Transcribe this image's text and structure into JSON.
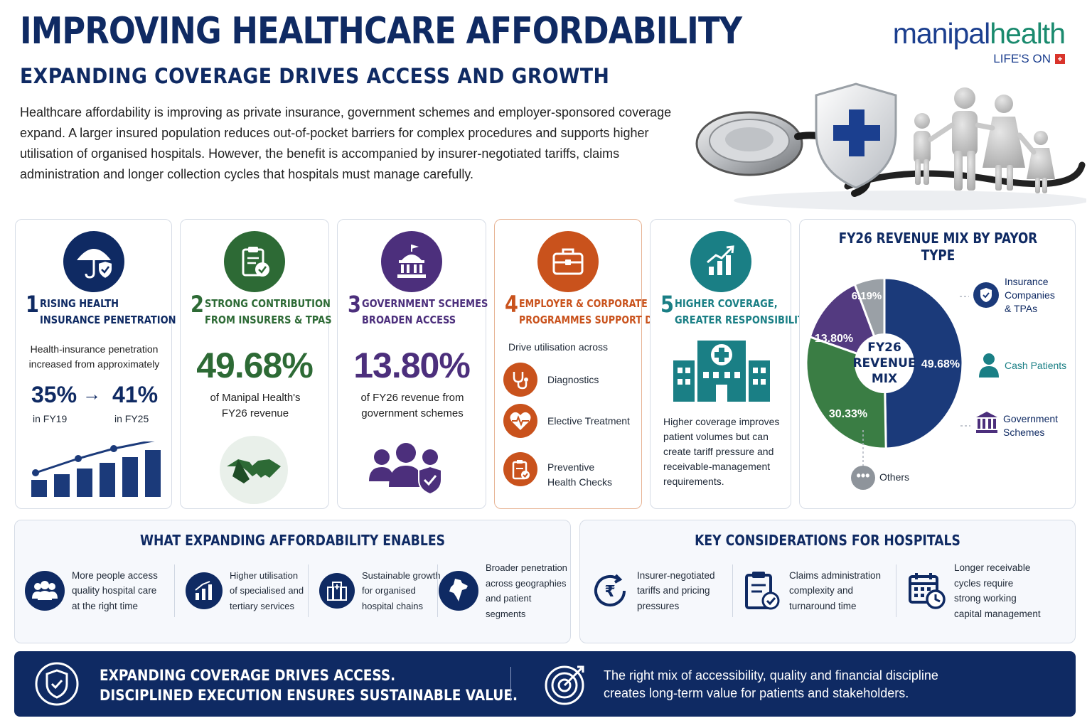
{
  "header": {
    "title": "IMPROVING HEALTHCARE AFFORDABILITY",
    "subtitle": "EXPANDING COVERAGE DRIVES ACCESS AND GROWTH",
    "intro": "Healthcare affordability is improving as private insurance, government schemes and employer-sponsored coverage expand. A larger insured population reduces out-of-pocket barriers for complex procedures and supports higher utilisation of organised hospitals. However, the benefit is accompanied by insurer-negotiated tariffs, claims administration and longer collection cycles that hospitals must manage carefully."
  },
  "brand": {
    "name_part1": "manipal",
    "name_part2": "health",
    "tagline": "LIFE'S ON",
    "tag_symbol": "+"
  },
  "colors": {
    "navy": "#0f2a63",
    "green": "#2d6a35",
    "purple": "#4c2f7c",
    "orange": "#c9521c",
    "teal": "#1a7f85",
    "grey": "#9aa0a6"
  },
  "cards": [
    {
      "num": "1",
      "line1": "RISING HEALTH",
      "line2": "INSURANCE PENETRATION",
      "text1": "Health-insurance penetration",
      "text2": "increased from approximately",
      "from_value": "35%",
      "arrow": "→",
      "to_value": "41%",
      "from_label": "in FY19",
      "to_label": "in FY25",
      "icon": "umbrella-shield-icon"
    },
    {
      "num": "2",
      "line1": "STRONG CONTRIBUTION",
      "line2": "FROM INSURERS & TPAS",
      "big": "49.68%",
      "text1": "of Manipal Health's",
      "text2": "FY26 revenue",
      "icon": "clipboard-check-icon"
    },
    {
      "num": "3",
      "line1": "GOVERNMENT SCHEMES",
      "line2": "BROADEN ACCESS",
      "big": "13.80%",
      "text1": "of FY26 revenue from",
      "text2": "government schemes",
      "icon": "government-building-icon"
    },
    {
      "num": "4",
      "line1": "EMPLOYER & CORPORATE",
      "line2": "PROGRAMMES SUPPORT DEMAND",
      "lead": "Drive utilisation across",
      "items": [
        "Diagnostics",
        "Elective Treatment",
        "Preventive",
        "Health Checks"
      ],
      "icon": "briefcase-icon"
    },
    {
      "num": "5",
      "line1": "HIGHER COVERAGE,",
      "line2": "GREATER RESPONSIBILITY",
      "lines": [
        "Higher coverage improves",
        "patient volumes but can",
        "create tariff pressure and",
        "receivable-management",
        "requirements."
      ],
      "icon": "growth-chart-icon"
    }
  ],
  "chart_data": {
    "type": "pie",
    "title": "FY26 REVENUE MIX BY PAYOR TYPE",
    "center_label": [
      "FY26",
      "REVENUE",
      "MIX"
    ],
    "slices": [
      {
        "label": "Insurance Companies & TPAs",
        "value": 49.68,
        "display": "49.68%",
        "color": "#1b3a7a"
      },
      {
        "label": "Cash Patients",
        "value": 30.33,
        "display": "30.33%",
        "color": "#3a7d44"
      },
      {
        "label": "Government Schemes",
        "value": 13.8,
        "display": "13.80%",
        "color": "#533a80"
      },
      {
        "label": "Others",
        "value": 6.19,
        "display": "6.19%",
        "color": "#9aa0a6"
      }
    ],
    "legend": [
      {
        "line1": "Insurance",
        "line2": "Companies",
        "line3": "& TPAs"
      },
      {
        "line1": "Cash Patients"
      },
      {
        "line1": "Government",
        "line2": "Schemes"
      },
      {
        "line1": "Others"
      }
    ],
    "legend_position": "right"
  },
  "enables": {
    "title": "WHAT EXPANDING AFFORDABILITY ENABLES",
    "items": [
      {
        "l1": "More people access",
        "l2": "quality hospital care",
        "l3": "at the right time",
        "icon": "people-group-icon"
      },
      {
        "l1": "Higher utilisation",
        "l2": "of specialised and",
        "l3": "tertiary services",
        "icon": "bar-growth-icon"
      },
      {
        "l1": "Sustainable growth",
        "l2": "for organised",
        "l3": "hospital chains",
        "icon": "hospital-building-icon"
      },
      {
        "l1": "Broader penetration",
        "l2": "across geographies",
        "l3": "and patient segments",
        "icon": "india-map-icon"
      }
    ]
  },
  "considerations": {
    "title": "KEY CONSIDERATIONS FOR HOSPITALS",
    "items": [
      {
        "l1": "Insurer-negotiated",
        "l2": "tariffs and pricing",
        "l3": "pressures",
        "icon": "rupee-cycle-icon"
      },
      {
        "l1": "Claims administration",
        "l2": "complexity and",
        "l3": "turnaround time",
        "icon": "claims-clipboard-icon"
      },
      {
        "l1": "Longer receivable",
        "l2": "cycles require",
        "l3": "strong working",
        "l4": "capital management",
        "icon": "calendar-clock-icon"
      }
    ]
  },
  "footer": {
    "left1": "EXPANDING COVERAGE DRIVES ACCESS.",
    "left2": "DISCIPLINED EXECUTION ENSURES SUSTAINABLE VALUE.",
    "right1": "The right mix of accessibility, quality and financial discipline",
    "right2": "creates long-term value for patients and stakeholders."
  }
}
